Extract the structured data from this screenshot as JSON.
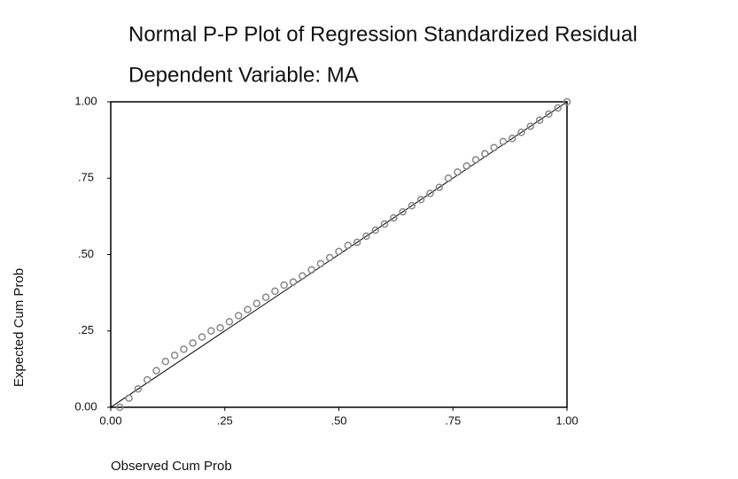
{
  "chart_data": {
    "type": "scatter",
    "title": "Normal P-P Plot of Regression Standardized Residual",
    "subtitle": "Dependent Variable: MA",
    "x_label": "Observed Cum Prob",
    "y_label": "Expected Cum Prob",
    "x": [
      0.02,
      0.04,
      0.06,
      0.08,
      0.1,
      0.12,
      0.14,
      0.16,
      0.18,
      0.2,
      0.22,
      0.24,
      0.26,
      0.28,
      0.3,
      0.32,
      0.34,
      0.36,
      0.38,
      0.4,
      0.42,
      0.44,
      0.46,
      0.48,
      0.5,
      0.52,
      0.54,
      0.56,
      0.58,
      0.6,
      0.62,
      0.64,
      0.66,
      0.68,
      0.7,
      0.72,
      0.74,
      0.76,
      0.78,
      0.8,
      0.82,
      0.84,
      0.86,
      0.88,
      0.9,
      0.92,
      0.94,
      0.96,
      0.98,
      1.0
    ],
    "values": [
      0.0,
      0.03,
      0.06,
      0.09,
      0.12,
      0.15,
      0.17,
      0.19,
      0.21,
      0.23,
      0.25,
      0.26,
      0.28,
      0.3,
      0.32,
      0.34,
      0.36,
      0.38,
      0.4,
      0.41,
      0.43,
      0.45,
      0.47,
      0.49,
      0.51,
      0.53,
      0.54,
      0.56,
      0.58,
      0.6,
      0.62,
      0.64,
      0.66,
      0.68,
      0.7,
      0.72,
      0.75,
      0.77,
      0.79,
      0.81,
      0.83,
      0.85,
      0.87,
      0.88,
      0.9,
      0.92,
      0.94,
      0.96,
      0.98,
      1.0
    ],
    "color": "#888888",
    "xlim": [
      0,
      1
    ],
    "ylim": [
      0,
      1
    ],
    "xticks": [
      {
        "value": 0,
        "label": "0.00"
      },
      {
        "value": 0.25,
        "label": ".25"
      },
      {
        "value": 0.5,
        "label": ".50"
      },
      {
        "value": 0.75,
        "label": ".75"
      },
      {
        "value": 1,
        "label": "1.00"
      }
    ],
    "yticks": [
      {
        "value": 0,
        "label": "0.00"
      },
      {
        "value": 0.25,
        "label": ".25"
      },
      {
        "value": 0.5,
        "label": ".50"
      },
      {
        "value": 0.75,
        "label": ".75"
      },
      {
        "value": 1,
        "label": "1.00"
      }
    ]
  }
}
